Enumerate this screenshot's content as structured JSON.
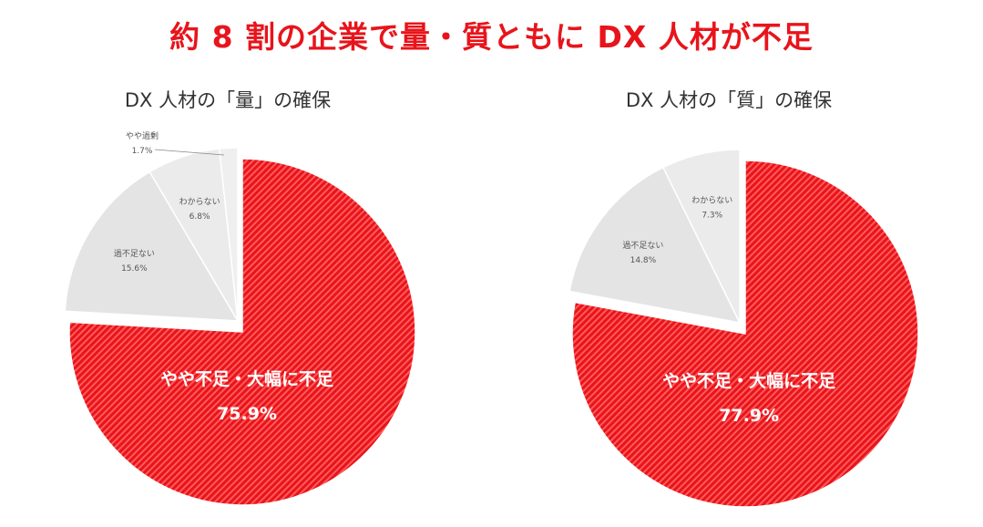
{
  "title": "約 8 割の企業で量・質ともに DX 人材が不足",
  "colors": {
    "accent": "#e8141b",
    "hatch": "#ff4a4a",
    "gray1": "#e4e4e4",
    "gray2": "#ebebeb",
    "gray3": "#efefef"
  },
  "chart_data": [
    {
      "type": "pie",
      "title": "DX 人材の「量」の確保",
      "slices": [
        {
          "label": "やや不足・大幅に不足",
          "value": 75.9,
          "display": "75.9%"
        },
        {
          "label": "過不足ない",
          "value": 15.6,
          "display": "15.6%"
        },
        {
          "label": "わからない",
          "value": 6.8,
          "display": "6.8%"
        },
        {
          "label": "やや過剰",
          "value": 1.7,
          "display": "1.7%"
        }
      ]
    },
    {
      "type": "pie",
      "title": "DX 人材の「質」の確保",
      "slices": [
        {
          "label": "やや不足・大幅に不足",
          "value": 77.9,
          "display": "77.9%"
        },
        {
          "label": "過不足ない",
          "value": 14.8,
          "display": "14.8%"
        },
        {
          "label": "わからない",
          "value": 7.3,
          "display": "7.3%"
        }
      ]
    }
  ]
}
